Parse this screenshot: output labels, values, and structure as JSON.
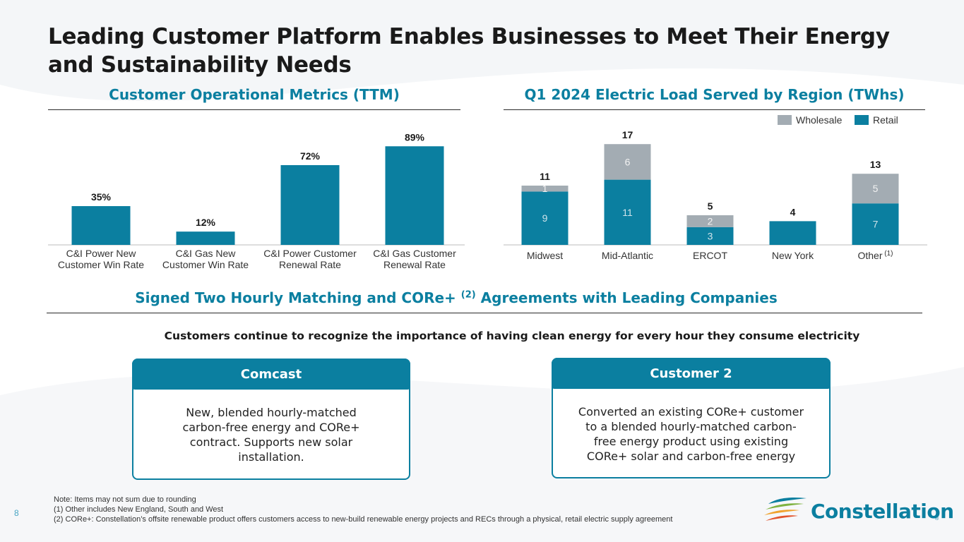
{
  "title": "Leading Customer Platform Enables Businesses to Meet Their Energy and Sustainability Needs",
  "left_section": {
    "heading": "Customer Operational Metrics (TTM)"
  },
  "right_section": {
    "heading": "Q1 2024 Electric Load Served by Region (TWhs)",
    "legend": {
      "wholesale": "Wholesale",
      "retail": "Retail"
    }
  },
  "agreements": {
    "heading": "Signed Two Hourly Matching and CORe+",
    "heading_sup": "(2)",
    "heading_tail": "Agreements with Leading Companies",
    "subtitle": "Customers continue to recognize the importance of having clean energy for every hour they consume electricity",
    "cards": [
      {
        "title": "Comcast",
        "body": [
          "New, blended hourly-matched",
          "carbon-free energy and CORe+",
          "contract. Supports new solar",
          "installation."
        ]
      },
      {
        "title": "Customer 2",
        "body": [
          "Converted an existing CORe+ customer",
          "to a blended hourly-matched carbon-",
          "free energy product using existing",
          "CORe+ solar and carbon-free energy"
        ]
      }
    ]
  },
  "footnotes": {
    "note": "Note: Items may not sum due to rounding",
    "fn1": "(1)    Other includes New England, South and West",
    "fn2": "(2)    CORe+: Constellation’s offsite renewable product offers customers access to new-build renewable energy projects and RECs through a physical, retail electric supply agreement"
  },
  "page_number": "8",
  "logo": {
    "text": "Constellation",
    "reg": "®"
  },
  "colors": {
    "primary": "#0b7fa0",
    "wholesale": "#a3acb3",
    "text": "#1a1a1a"
  },
  "chart_data": [
    {
      "type": "bar",
      "title": "Customer Operational Metrics (TTM)",
      "categories": [
        [
          "C&I Power New",
          "Customer Win Rate"
        ],
        [
          "C&I Gas New",
          "Customer Win Rate"
        ],
        [
          "C&I Power Customer",
          "Renewal Rate"
        ],
        [
          "C&I Gas Customer",
          "Renewal Rate"
        ]
      ],
      "values": [
        35,
        12,
        72,
        89
      ],
      "data_labels": [
        "35%",
        "12%",
        "72%",
        "89%"
      ],
      "ylim": [
        0,
        100
      ]
    },
    {
      "type": "stacked_bar",
      "title": "Q1 2024 Electric Load Served by Region (TWhs)",
      "categories": [
        "Midwest",
        "Mid-Atlantic",
        "ERCOT",
        "New York",
        "Other"
      ],
      "category_sup": [
        "",
        "",
        "",
        "",
        "(1)"
      ],
      "series": [
        {
          "name": "Retail",
          "values": [
            9,
            11,
            3,
            4,
            7
          ],
          "labels": [
            "9",
            "11",
            "3",
            "",
            "7"
          ]
        },
        {
          "name": "Wholesale",
          "values": [
            1,
            6,
            2,
            0,
            5
          ],
          "labels": [
            "1",
            "6",
            "2",
            "",
            "5"
          ]
        }
      ],
      "totals": [
        "11",
        "17",
        "5",
        "4",
        "13"
      ],
      "ylim": [
        0,
        18
      ]
    }
  ]
}
